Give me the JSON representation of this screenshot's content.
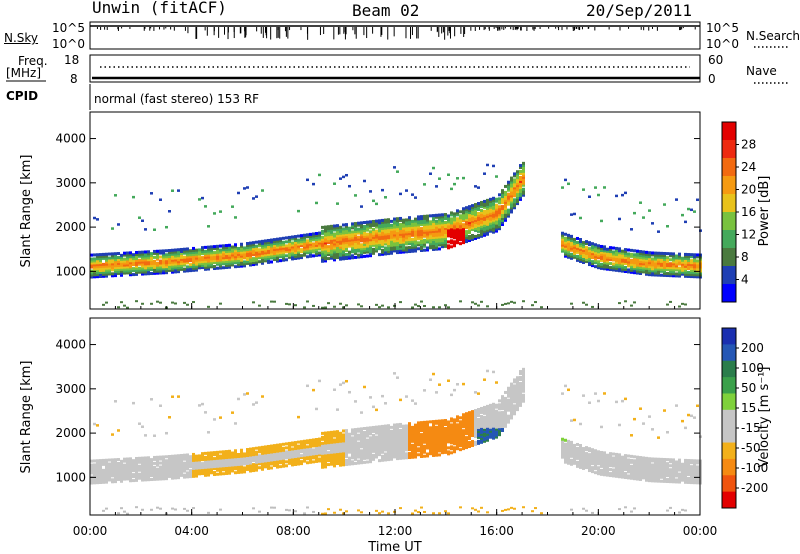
{
  "header": {
    "radar": "Unwin (fitACF)",
    "beam": "Beam 02",
    "date": "20/Sep/2011"
  },
  "top_panels": {
    "nsky_label": "N.Sky",
    "nsky_ticks": [
      "10^5",
      "10^0"
    ],
    "nsearch_label": "N.Search",
    "nsearch_ticks": [
      "10^5",
      "10^0"
    ],
    "freq_label_1": "Freq.",
    "freq_label_2": "[MHz]",
    "freq_ticks": [
      "18",
      "8"
    ],
    "nave_label": "Nave",
    "nave_ticks": [
      "60",
      "0"
    ],
    "cpid_label": "CPID",
    "cpid_text": "normal (fast stereo) 153 RF"
  },
  "colors": {
    "power_scale": [
      "#0000ff",
      "#1f3fb4",
      "#4a7a3f",
      "#44a95b",
      "#79c23f",
      "#e8c21b",
      "#f59a11",
      "#f26a10",
      "#ee2a10",
      "#e30000"
    ],
    "velocity_scale": [
      "#1a2fb0",
      "#2557b5",
      "#2a7d4b",
      "#3aa04a",
      "#7fd13b",
      "#c6c6c6",
      "#c6c6c6",
      "#f2b01a",
      "#f58a12",
      "#f0540e",
      "#e30000"
    ],
    "ground_scatter": "#bebebe"
  },
  "chart_data": [
    {
      "type": "heatmap",
      "name": "power",
      "xlabel": "",
      "ylabel": "Slant Range [km]",
      "y_ticks": [
        "1000",
        "2000",
        "3000",
        "4000"
      ],
      "ylim": [
        150,
        4600
      ],
      "colorbar": {
        "label": "Power [dB]",
        "ticks": [
          "4",
          "8",
          "12",
          "16",
          "20",
          "24",
          "28"
        ],
        "range": [
          0,
          32
        ]
      },
      "features": [
        {
          "desc": "main scatter band",
          "x_hours": [
            0,
            3,
            6,
            9,
            12,
            14,
            16,
            17
          ],
          "range_km": [
            1100,
            1200,
            1350,
            1600,
            1800,
            1900,
            2300,
            3100
          ],
          "power_db": 22
        },
        {
          "desc": "strong echo patch",
          "x_hours": [
            14.3
          ],
          "range_km": [
            1700
          ],
          "power_db": 30
        },
        {
          "desc": "evening band",
          "x_hours": [
            18.5,
            20,
            22,
            24
          ],
          "range_km": [
            1600,
            1300,
            1150,
            1100
          ],
          "power_db": 20
        }
      ]
    },
    {
      "type": "heatmap",
      "name": "velocity",
      "xlabel": "Time UT",
      "ylabel": "Slant Range [km]",
      "x_ticks": [
        "00:00",
        "04:00",
        "08:00",
        "12:00",
        "16:00",
        "20:00",
        "00:00"
      ],
      "y_ticks": [
        "1000",
        "2000",
        "3000",
        "4000"
      ],
      "ylim": [
        150,
        4600
      ],
      "colorbar": {
        "label": "Velocity [m s⁻¹]",
        "ticks": [
          "200",
          "100",
          "50",
          "15",
          "-15",
          "-50",
          "-100",
          "-200"
        ],
        "range": [
          -250,
          250
        ]
      },
      "features": [
        {
          "desc": "ground scatter band",
          "x_hours": [
            0,
            6,
            12,
            17
          ],
          "range_km": [
            1200,
            1350,
            1800,
            3100
          ],
          "velocity": 0
        },
        {
          "desc": "negative velocity region",
          "x_hours": [
            13,
            14.5
          ],
          "range_km": [
            1700,
            1700
          ],
          "velocity": -100
        },
        {
          "desc": "positive velocity region",
          "x_hours": [
            15.5,
            16.5
          ],
          "range_km": [
            1700,
            1800
          ],
          "velocity": 80
        }
      ]
    }
  ]
}
